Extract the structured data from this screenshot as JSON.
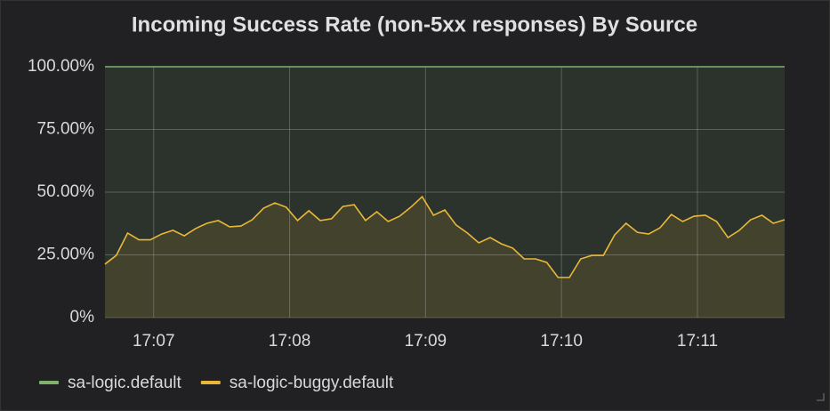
{
  "chart_data": {
    "type": "line",
    "title": "Incoming Success Rate (non-5xx responses) By Source",
    "xlim": [
      0,
      60
    ],
    "xticks": [
      {
        "value": 4.3,
        "label": "17:07"
      },
      {
        "value": 16.3,
        "label": "17:08"
      },
      {
        "value": 28.3,
        "label": "17:09"
      },
      {
        "value": 40.3,
        "label": "17:10"
      },
      {
        "value": 52.3,
        "label": "17:11"
      }
    ],
    "ylim": [
      0,
      100
    ],
    "yticks": [
      {
        "value": 0,
        "label": "0%"
      },
      {
        "value": 25,
        "label": "25.00%"
      },
      {
        "value": 50,
        "label": "50.00%"
      },
      {
        "value": 75,
        "label": "75.00%"
      },
      {
        "value": 100,
        "label": "100.00%"
      }
    ],
    "grid": true,
    "legend": "bottom-left",
    "series": [
      {
        "name": "sa-logic.default",
        "color": "#7eb26d",
        "values": [
          100,
          100,
          100,
          100,
          100,
          100,
          100,
          100,
          100,
          100,
          100,
          100,
          100,
          100,
          100,
          100,
          100,
          100,
          100,
          100,
          100,
          100,
          100,
          100,
          100,
          100,
          100,
          100,
          100,
          100,
          100,
          100,
          100,
          100,
          100,
          100,
          100,
          100,
          100,
          100,
          100,
          100,
          100,
          100,
          100,
          100,
          100,
          100,
          100,
          100,
          100,
          100,
          100,
          100,
          100,
          100,
          100,
          100,
          100,
          100,
          100
        ]
      },
      {
        "name": "sa-logic-buggy.default",
        "color": "#eab839",
        "values": [
          21.3,
          24.8,
          33.7,
          31,
          31,
          33.3,
          34.8,
          32.6,
          35.5,
          37.6,
          38.7,
          36.2,
          36.5,
          39,
          43.6,
          45.7,
          44,
          38.7,
          42.6,
          38.7,
          39.4,
          44.3,
          45,
          38.7,
          42.2,
          38.3,
          40.4,
          44,
          48.2,
          40.8,
          42.9,
          36.9,
          33.7,
          29.8,
          31.9,
          29.4,
          27.7,
          23.4,
          23.4,
          22,
          16,
          16,
          23.4,
          24.8,
          24.8,
          33,
          37.6,
          34,
          33.3,
          35.8,
          41.1,
          38.3,
          40.4,
          40.8,
          38.3,
          31.9,
          34.8,
          39,
          40.8,
          37.6,
          39
        ]
      }
    ]
  }
}
